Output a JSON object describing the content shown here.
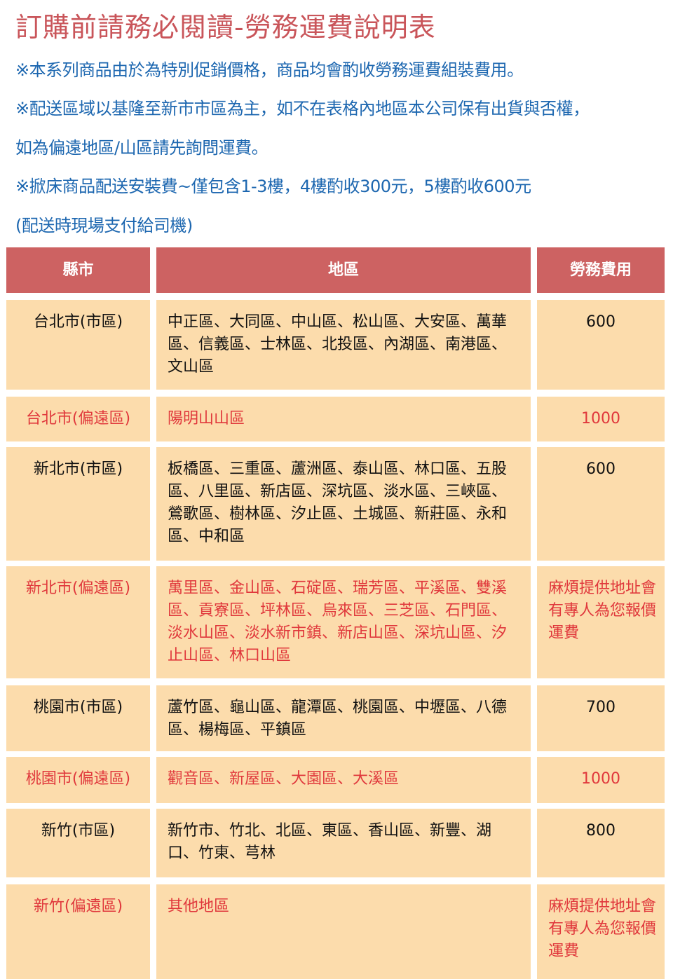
{
  "title": "訂購前請務必閱讀-勞務運費說明表",
  "notes": [
    "※本系列商品由於為特別促銷價格，商品均會酌收勞務運費組裝費用。",
    "※配送區域以基隆至新市市區為主，如不在表格內地區本公司保有出貨與否權，",
    "如為偏遠地區/山區請先詢問運費。",
    "※掀床商品配送安裝費~僅包含1-3樓，4樓酌收300元，5樓酌收600元",
    "(配送時現場支付給司機)"
  ],
  "colors": {
    "title": "#c9555a",
    "notes": "#1d67b0",
    "header_bg": "#cd6262",
    "cell_bg": "#fcdcac",
    "remote_text": "#e0383c"
  },
  "table": {
    "headers": [
      "縣市",
      "地區",
      "勞務費用"
    ],
    "rows": [
      {
        "city": "台北市(市區)",
        "areas": "中正區、大同區、中山區、松山區、大安區、萬華區、信義區、士林區、北投區、內湖區、南港區、文山區",
        "fee": "600",
        "remote": false
      },
      {
        "city": "台北市(偏遠區)",
        "areas": "陽明山山區",
        "fee": "1000",
        "remote": true
      },
      {
        "city": "新北市(市區)",
        "areas": "板橋區、三重區、蘆洲區、泰山區、林口區、五股區、八里區、新店區、深坑區、淡水區、三峽區、鶯歌區、樹林區、汐止區、土城區、新莊區、永和區、中和區",
        "fee": "600",
        "remote": false
      },
      {
        "city": "新北市(偏遠區)",
        "areas": "萬里區、金山區、石碇區、瑞芳區、平溪區、雙溪區、貢寮區、坪林區、烏來區、三芝區、石門區、淡水山區、淡水新市鎮、新店山區、深坑山區、汐止山區、林口山區",
        "fee": "麻煩提供地址會有專人為您報價運費",
        "remote": true
      },
      {
        "city": "桃園市(市區)",
        "areas": "蘆竹區、龜山區、龍潭區、桃園區、中壢區、八德區、楊梅區、平鎮區",
        "fee": "700",
        "remote": false
      },
      {
        "city": "桃園市(偏遠區)",
        "areas": "觀音區、新屋區、大園區、大溪區",
        "fee": "1000",
        "remote": true
      },
      {
        "city": "新竹(市區)",
        "areas": "新竹市、竹北、北區、東區、香山區、新豐、湖口、竹東、芎林",
        "fee": "800",
        "remote": false
      },
      {
        "city": "新竹(偏遠區)",
        "areas": "其他地區",
        "fee": "麻煩提供地址會有專人為您報價運費",
        "remote": true
      }
    ]
  }
}
